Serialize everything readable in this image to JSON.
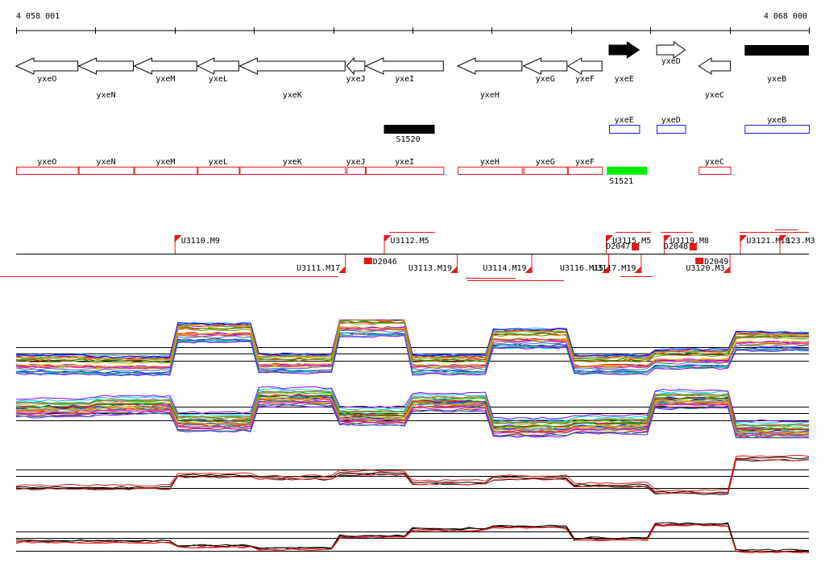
{
  "ruler": {
    "start_label": "4 058 001",
    "end_label": "4 068 000",
    "start": 4058001,
    "end": 4068000
  },
  "genes": [
    {
      "name": "yxeO",
      "start": 4058001,
      "end": 4058780,
      "strand": "-",
      "label_row": 0
    },
    {
      "name": "yxeN",
      "start": 4058790,
      "end": 4059480,
      "strand": "-",
      "label_row": 1
    },
    {
      "name": "yxeM",
      "start": 4059490,
      "end": 4060280,
      "strand": "-",
      "label_row": 0
    },
    {
      "name": "yxeL",
      "start": 4060290,
      "end": 4060810,
      "strand": "-",
      "label_row": 0
    },
    {
      "name": "yxeK",
      "start": 4060820,
      "end": 4062150,
      "strand": "-",
      "label_row": 1
    },
    {
      "name": "yxeJ",
      "start": 4062170,
      "end": 4062400,
      "strand": "-",
      "label_row": 0
    },
    {
      "name": "yxeI",
      "start": 4062410,
      "end": 4063390,
      "strand": "-",
      "label_row": 0
    },
    {
      "name": "yxeH",
      "start": 4063570,
      "end": 4064380,
      "strand": "-",
      "label_row": 1
    },
    {
      "name": "yxeG",
      "start": 4064400,
      "end": 4064950,
      "strand": "-",
      "label_row": 0
    },
    {
      "name": "yxeF",
      "start": 4064960,
      "end": 4065390,
      "strand": "-",
      "label_row": 0
    },
    {
      "name": "yxeE",
      "start": 4065480,
      "end": 4065860,
      "strand": "+",
      "filled": true,
      "label_row": 1
    },
    {
      "name": "yxeD",
      "start": 4066080,
      "end": 4066440,
      "strand": "+",
      "label_row": 0
    },
    {
      "name": "yxeC",
      "start": 4066610,
      "end": 4067010,
      "strand": "-",
      "label_row": 1
    },
    {
      "name": "yxeB",
      "start": 4067190,
      "end": 4068000,
      "strand": "+",
      "filled": true,
      "label_row": 1
    }
  ],
  "fwd_features": [
    {
      "name": "S1520",
      "start": 4062640,
      "end": 4063280,
      "fill": "#000000",
      "label_below": true
    },
    {
      "name": "yxeE",
      "start": 4065480,
      "end": 4065860,
      "stroke": "#1a1aff"
    },
    {
      "name": "yxeD",
      "start": 4066080,
      "end": 4066440,
      "stroke": "#1a1aff"
    },
    {
      "name": "yxeB",
      "start": 4067190,
      "end": 4068000,
      "stroke": "#1a1aff"
    }
  ],
  "rev_features": [
    {
      "name": "yxeO",
      "start": 4058001,
      "end": 4058780
    },
    {
      "name": "yxeN",
      "start": 4058790,
      "end": 4059480
    },
    {
      "name": "yxeM",
      "start": 4059490,
      "end": 4060280
    },
    {
      "name": "yxeL",
      "start": 4060290,
      "end": 4060810
    },
    {
      "name": "yxeK",
      "start": 4060820,
      "end": 4062150
    },
    {
      "name": "yxeJ",
      "start": 4062170,
      "end": 4062400
    },
    {
      "name": "yxeI",
      "start": 4062410,
      "end": 4063390
    },
    {
      "name": "yxeH",
      "start": 4063570,
      "end": 4064380
    },
    {
      "name": "yxeG",
      "start": 4064400,
      "end": 4064950
    },
    {
      "name": "yxeF",
      "start": 4064960,
      "end": 4065390
    },
    {
      "name": "S1521",
      "start": 4065450,
      "end": 4065960,
      "fill": "#00ee00",
      "label_below": true
    },
    {
      "name": "yxeC",
      "start": 4066610,
      "end": 4067010
    }
  ],
  "segment_marks_top": [
    {
      "label": "U3110.M9",
      "pos": 4060000
    },
    {
      "label": "U3112.M5",
      "pos": 4062640
    },
    {
      "label": "U3115.M5",
      "pos": 4065440
    },
    {
      "label": "D2047",
      "pos": 4065440
    },
    {
      "label": "U3119.M8",
      "pos": 4066170
    },
    {
      "label": "D2048",
      "pos": 4066170
    },
    {
      "label": "U3121.M18",
      "pos": 4067130
    },
    {
      "label": "123.M3",
      "pos": 4067630
    }
  ],
  "segment_marks_bottom": [
    {
      "label": "U3111.M17",
      "pos": 4062150
    },
    {
      "label": "D2046",
      "pos": 4062490
    },
    {
      "label": "U3113.M19",
      "pos": 4063560
    },
    {
      "label": "U3114.M19",
      "pos": 4064500
    },
    {
      "label": "U3116.M15",
      "pos": 4065470
    },
    {
      "label": "U3117.M19",
      "pos": 4065880
    },
    {
      "label": "U3120.M3",
      "pos": 4067000
    },
    {
      "label": "D2049",
      "pos": 4066670
    }
  ],
  "expression_panels": [
    {
      "name": "panel-forward-multi",
      "profile_levels": [
        0.2,
        0.18,
        0.75,
        0.22,
        0.85,
        0.2,
        0.65,
        0.2,
        0.3,
        0.6
      ]
    },
    {
      "name": "panel-reverse-multi",
      "profile_levels": [
        0.55,
        0.6,
        0.3,
        0.75,
        0.4,
        0.65,
        0.2,
        0.25,
        0.7,
        0.15
      ]
    },
    {
      "name": "panel-forward-summary",
      "profile_levels": [
        0.25,
        0.25,
        0.5,
        0.45,
        0.55,
        0.35,
        0.45,
        0.3,
        0.15,
        0.85
      ]
    },
    {
      "name": "panel-reverse-summary",
      "profile_levels": [
        0.45,
        0.45,
        0.35,
        0.3,
        0.55,
        0.7,
        0.75,
        0.5,
        0.8,
        0.25
      ]
    }
  ]
}
